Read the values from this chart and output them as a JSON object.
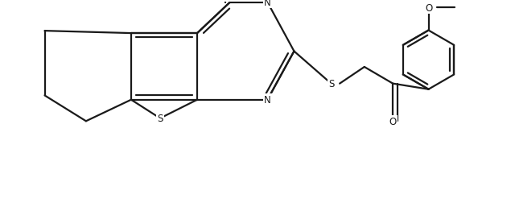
{
  "background_color": "#ffffff",
  "line_color": "#1a1a1a",
  "line_width": 1.6,
  "figsize": [
    6.4,
    2.53
  ],
  "dpi": 100,
  "xlim": [
    0,
    10.5
  ],
  "ylim": [
    0,
    4.2
  ]
}
